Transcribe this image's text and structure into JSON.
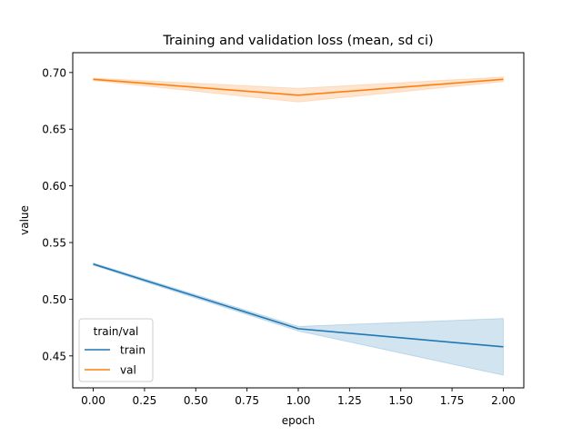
{
  "chart_data": {
    "type": "line",
    "title": "Training and validation loss (mean, sd ci)",
    "xlabel": "epoch",
    "ylabel": "value",
    "xlim": [
      -0.1,
      2.1
    ],
    "ylim": [
      0.4218,
      0.7175
    ],
    "x_ticks": [
      0.0,
      0.25,
      0.5,
      0.75,
      1.0,
      1.25,
      1.5,
      1.75,
      2.0
    ],
    "x_tick_labels": [
      "0.00",
      "0.25",
      "0.50",
      "0.75",
      "1.00",
      "1.25",
      "1.50",
      "1.75",
      "2.00"
    ],
    "y_ticks": [
      0.45,
      0.5,
      0.55,
      0.6,
      0.65,
      0.7
    ],
    "y_tick_labels": [
      "0.45",
      "0.50",
      "0.55",
      "0.60",
      "0.65",
      "0.70"
    ],
    "grid": false,
    "legend": {
      "title": "train/val",
      "placement": "lower-left"
    },
    "x": [
      0,
      1,
      2
    ],
    "series": [
      {
        "name": "train",
        "color": "#1f77b4",
        "values": [
          0.531,
          0.474,
          0.458
        ],
        "ci_lower": [
          0.53,
          0.472,
          0.433
        ],
        "ci_upper": [
          0.532,
          0.476,
          0.483
        ]
      },
      {
        "name": "val",
        "color": "#ff7f0e",
        "values": [
          0.694,
          0.68,
          0.694
        ],
        "ci_lower": [
          0.693,
          0.674,
          0.692
        ],
        "ci_upper": [
          0.695,
          0.686,
          0.696
        ]
      }
    ]
  }
}
